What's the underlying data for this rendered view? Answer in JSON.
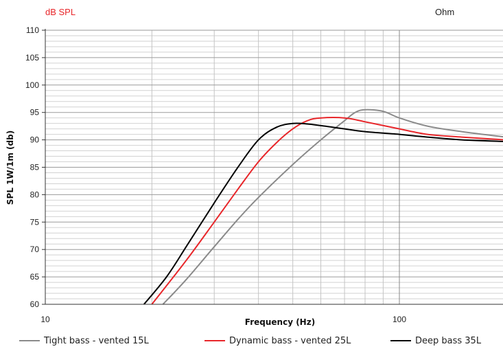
{
  "chart_data": {
    "type": "line",
    "title": "",
    "left_unit_label": "dB SPL",
    "right_unit_label": "Ohm",
    "xlabel": "Frequency (Hz)",
    "ylabel": "SPL 1W/1m (db)",
    "x_scale": "log",
    "xlim": [
      10,
      200
    ],
    "ylim": [
      60,
      110
    ],
    "x_tick_labels": [
      "10",
      "100"
    ],
    "x_ticks": [
      10,
      100
    ],
    "y_ticks": [
      60,
      65,
      70,
      75,
      80,
      85,
      90,
      95,
      100,
      105,
      110
    ],
    "y_tick_labels": [
      "60",
      "65",
      "70",
      "75",
      "80",
      "85",
      "90",
      "95",
      "100",
      "105",
      "110"
    ],
    "grid": true,
    "legend_position": "bottom",
    "series": [
      {
        "name": "Tight bass - vented 15L",
        "color": "#8a8a8a",
        "x": [
          21.5,
          25,
          30,
          35,
          40,
          50,
          60,
          70,
          75,
          80,
          90,
          100,
          120,
          150,
          200
        ],
        "y": [
          60,
          64.5,
          70.5,
          75.5,
          79.5,
          85.5,
          90,
          93.5,
          95,
          95.5,
          95.2,
          94,
          92.5,
          91.5,
          90.5
        ]
      },
      {
        "name": "Dynamic bass - vented 25L",
        "color": "#e8262a",
        "x": [
          20,
          25,
          30,
          35,
          40,
          45,
          50,
          55,
          60,
          70,
          80,
          100,
          120,
          150,
          200
        ],
        "y": [
          60,
          68,
          75,
          81,
          86,
          89.5,
          92,
          93.5,
          94,
          94,
          93.3,
          92,
          91,
          90.5,
          90
        ]
      },
      {
        "name": "Deep bass 35L",
        "color": "#000000",
        "x": [
          19,
          22,
          25,
          30,
          35,
          40,
          45,
          50,
          55,
          60,
          70,
          80,
          100,
          120,
          150,
          200
        ],
        "y": [
          60,
          65,
          70.5,
          78.5,
          85,
          90,
          92.3,
          93,
          92.9,
          92.6,
          92,
          91.5,
          91,
          90.5,
          90,
          89.7
        ]
      }
    ]
  }
}
